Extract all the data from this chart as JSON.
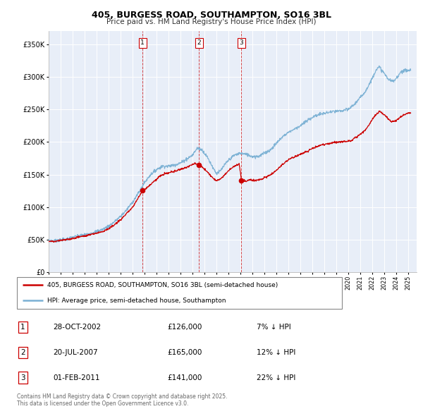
{
  "title": "405, BURGESS ROAD, SOUTHAMPTON, SO16 3BL",
  "subtitle": "Price paid vs. HM Land Registry's House Price Index (HPI)",
  "legend_line1": "405, BURGESS ROAD, SOUTHAMPTON, SO16 3BL (semi-detached house)",
  "legend_line2": "HPI: Average price, semi-detached house, Southampton",
  "footer": "Contains HM Land Registry data © Crown copyright and database right 2025.\nThis data is licensed under the Open Government Licence v3.0.",
  "sale_color": "#cc0000",
  "hpi_color": "#7ab0d4",
  "background_color": "#e8eef8",
  "sale_dates": [
    2002.83,
    2007.55,
    2011.08
  ],
  "sale_prices": [
    126000,
    165000,
    141000
  ],
  "sale_labels": [
    "1",
    "2",
    "3"
  ],
  "sale_info": [
    {
      "label": "1",
      "date": "28-OCT-2002",
      "price": "£126,000",
      "hpi": "7% ↓ HPI"
    },
    {
      "label": "2",
      "date": "20-JUL-2007",
      "price": "£165,000",
      "hpi": "12% ↓ HPI"
    },
    {
      "label": "3",
      "date": "01-FEB-2011",
      "price": "£141,000",
      "hpi": "22% ↓ HPI"
    }
  ],
  "ylim": [
    0,
    370000
  ],
  "xlim_start": 1995.0,
  "xlim_end": 2025.7,
  "yticks": [
    0,
    50000,
    100000,
    150000,
    200000,
    250000,
    300000,
    350000
  ],
  "ytick_labels": [
    "£0",
    "£50K",
    "£100K",
    "£150K",
    "£200K",
    "£250K",
    "£300K",
    "£350K"
  ],
  "hpi_anchors": [
    [
      1995.0,
      49000
    ],
    [
      1995.5,
      48500
    ],
    [
      1996.0,
      50000
    ],
    [
      1996.5,
      51000
    ],
    [
      1997.0,
      54000
    ],
    [
      1997.5,
      56000
    ],
    [
      1998.0,
      58000
    ],
    [
      1998.5,
      60000
    ],
    [
      1999.0,
      63000
    ],
    [
      1999.5,
      66000
    ],
    [
      2000.0,
      71000
    ],
    [
      2000.5,
      78000
    ],
    [
      2001.0,
      86000
    ],
    [
      2001.5,
      96000
    ],
    [
      2002.0,
      108000
    ],
    [
      2002.5,
      122000
    ],
    [
      2003.0,
      138000
    ],
    [
      2003.5,
      150000
    ],
    [
      2004.0,
      158000
    ],
    [
      2004.5,
      163000
    ],
    [
      2005.0,
      163000
    ],
    [
      2005.5,
      165000
    ],
    [
      2006.0,
      168000
    ],
    [
      2006.5,
      174000
    ],
    [
      2007.0,
      180000
    ],
    [
      2007.4,
      191000
    ],
    [
      2007.8,
      188000
    ],
    [
      2008.2,
      178000
    ],
    [
      2008.5,
      168000
    ],
    [
      2008.8,
      158000
    ],
    [
      2009.0,
      152000
    ],
    [
      2009.3,
      155000
    ],
    [
      2009.6,
      163000
    ],
    [
      2010.0,
      172000
    ],
    [
      2010.5,
      180000
    ],
    [
      2011.0,
      183000
    ],
    [
      2011.5,
      181000
    ],
    [
      2012.0,
      178000
    ],
    [
      2012.5,
      178000
    ],
    [
      2013.0,
      183000
    ],
    [
      2013.5,
      188000
    ],
    [
      2014.0,
      198000
    ],
    [
      2014.5,
      208000
    ],
    [
      2015.0,
      215000
    ],
    [
      2015.5,
      220000
    ],
    [
      2016.0,
      225000
    ],
    [
      2016.5,
      232000
    ],
    [
      2017.0,
      238000
    ],
    [
      2017.5,
      242000
    ],
    [
      2018.0,
      244000
    ],
    [
      2018.5,
      246000
    ],
    [
      2019.0,
      247000
    ],
    [
      2019.5,
      248000
    ],
    [
      2020.0,
      250000
    ],
    [
      2020.5,
      258000
    ],
    [
      2021.0,
      268000
    ],
    [
      2021.5,
      280000
    ],
    [
      2022.0,
      298000
    ],
    [
      2022.3,
      311000
    ],
    [
      2022.6,
      315000
    ],
    [
      2023.0,
      305000
    ],
    [
      2023.4,
      295000
    ],
    [
      2023.8,
      293000
    ],
    [
      2024.0,
      298000
    ],
    [
      2024.4,
      308000
    ],
    [
      2024.8,
      310000
    ],
    [
      2025.2,
      310000
    ]
  ],
  "sale_anchors": [
    [
      1995.0,
      48000
    ],
    [
      1995.5,
      47500
    ],
    [
      1996.0,
      49000
    ],
    [
      1996.5,
      50500
    ],
    [
      1997.0,
      52000
    ],
    [
      1997.5,
      54500
    ],
    [
      1998.0,
      56000
    ],
    [
      1998.5,
      58000
    ],
    [
      1999.0,
      60500
    ],
    [
      1999.5,
      63000
    ],
    [
      2000.0,
      67000
    ],
    [
      2000.5,
      73000
    ],
    [
      2001.0,
      81000
    ],
    [
      2001.5,
      90000
    ],
    [
      2002.0,
      100000
    ],
    [
      2002.5,
      115000
    ],
    [
      2002.83,
      126000
    ],
    [
      2003.2,
      130000
    ],
    [
      2003.8,
      140000
    ],
    [
      2004.3,
      148000
    ],
    [
      2004.8,
      152000
    ],
    [
      2005.3,
      154000
    ],
    [
      2005.8,
      157000
    ],
    [
      2006.3,
      160000
    ],
    [
      2006.8,
      164000
    ],
    [
      2007.2,
      167000
    ],
    [
      2007.55,
      165000
    ],
    [
      2007.8,
      162000
    ],
    [
      2008.1,
      157000
    ],
    [
      2008.4,
      151000
    ],
    [
      2008.7,
      145000
    ],
    [
      2009.0,
      141000
    ],
    [
      2009.3,
      143000
    ],
    [
      2009.7,
      150000
    ],
    [
      2010.1,
      158000
    ],
    [
      2010.5,
      163000
    ],
    [
      2010.9,
      167000
    ],
    [
      2011.08,
      141000
    ],
    [
      2011.4,
      140000
    ],
    [
      2011.8,
      142000
    ],
    [
      2012.2,
      141000
    ],
    [
      2012.7,
      143000
    ],
    [
      2013.2,
      147000
    ],
    [
      2013.7,
      152000
    ],
    [
      2014.2,
      160000
    ],
    [
      2014.7,
      169000
    ],
    [
      2015.2,
      175000
    ],
    [
      2015.7,
      179000
    ],
    [
      2016.2,
      183000
    ],
    [
      2016.7,
      187000
    ],
    [
      2017.2,
      192000
    ],
    [
      2017.7,
      195000
    ],
    [
      2018.2,
      197000
    ],
    [
      2018.7,
      199000
    ],
    [
      2019.2,
      200000
    ],
    [
      2019.7,
      201000
    ],
    [
      2020.2,
      202000
    ],
    [
      2020.7,
      208000
    ],
    [
      2021.1,
      213000
    ],
    [
      2021.5,
      220000
    ],
    [
      2022.0,
      235000
    ],
    [
      2022.3,
      242000
    ],
    [
      2022.6,
      247000
    ],
    [
      2023.0,
      242000
    ],
    [
      2023.3,
      236000
    ],
    [
      2023.6,
      231000
    ],
    [
      2024.0,
      233000
    ],
    [
      2024.4,
      239000
    ],
    [
      2024.8,
      243000
    ],
    [
      2025.2,
      245000
    ]
  ]
}
